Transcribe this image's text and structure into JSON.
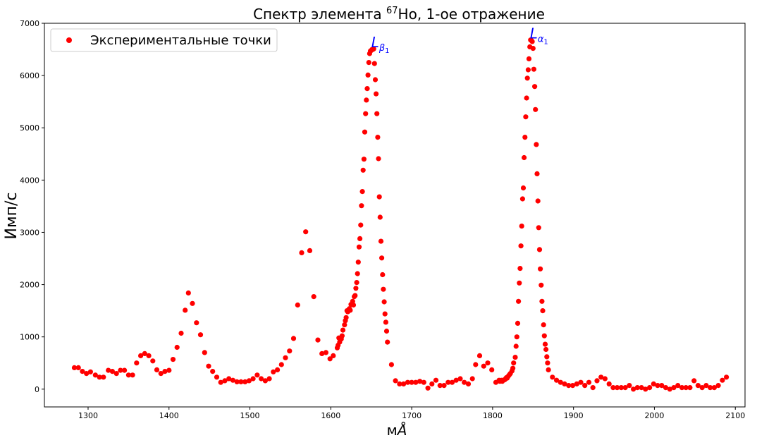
{
  "chart_data": {
    "type": "scatter",
    "title": {
      "prefix": "Спектр элемента ",
      "superscript": "67",
      "suffix": "Ho, 1-ое отражение"
    },
    "xlabel": {
      "main": "м",
      "italic": "Å"
    },
    "ylabel": "Имп/с",
    "xlim": [
      1246,
      2112
    ],
    "ylim": [
      -340,
      7000
    ],
    "xticks": [
      1300,
      1400,
      1500,
      1600,
      1700,
      1800,
      1900,
      2000,
      2100
    ],
    "yticks": [
      0,
      1000,
      2000,
      3000,
      4000,
      5000,
      6000,
      7000
    ],
    "grid": false,
    "legend": {
      "position": "top-left",
      "label": "Экспериментальные точки"
    },
    "series": [
      {
        "name": "Экспериментальные точки",
        "color": "#ff0000",
        "marker": "circle",
        "points": [
          [
            1283,
            410
          ],
          [
            1288,
            410
          ],
          [
            1293,
            340
          ],
          [
            1298,
            300
          ],
          [
            1303,
            330
          ],
          [
            1309,
            270
          ],
          [
            1314,
            230
          ],
          [
            1319,
            230
          ],
          [
            1325,
            360
          ],
          [
            1330,
            340
          ],
          [
            1335,
            300
          ],
          [
            1340,
            360
          ],
          [
            1345,
            360
          ],
          [
            1350,
            270
          ],
          [
            1355,
            270
          ],
          [
            1360,
            500
          ],
          [
            1365,
            640
          ],
          [
            1370,
            680
          ],
          [
            1375,
            640
          ],
          [
            1380,
            540
          ],
          [
            1385,
            370
          ],
          [
            1390,
            300
          ],
          [
            1395,
            340
          ],
          [
            1400,
            360
          ],
          [
            1405,
            570
          ],
          [
            1410,
            800
          ],
          [
            1415,
            1070
          ],
          [
            1420,
            1510
          ],
          [
            1424,
            1840
          ],
          [
            1429,
            1640
          ],
          [
            1434,
            1270
          ],
          [
            1439,
            1040
          ],
          [
            1444,
            700
          ],
          [
            1449,
            440
          ],
          [
            1454,
            340
          ],
          [
            1459,
            230
          ],
          [
            1464,
            130
          ],
          [
            1469,
            160
          ],
          [
            1474,
            200
          ],
          [
            1479,
            170
          ],
          [
            1484,
            140
          ],
          [
            1489,
            140
          ],
          [
            1494,
            140
          ],
          [
            1499,
            160
          ],
          [
            1504,
            200
          ],
          [
            1509,
            270
          ],
          [
            1514,
            200
          ],
          [
            1519,
            160
          ],
          [
            1524,
            200
          ],
          [
            1529,
            330
          ],
          [
            1534,
            370
          ],
          [
            1539,
            470
          ],
          [
            1544,
            600
          ],
          [
            1549,
            730
          ],
          [
            1554,
            970
          ],
          [
            1559,
            1610
          ],
          [
            1564,
            2610
          ],
          [
            1569,
            3010
          ],
          [
            1574,
            2650
          ],
          [
            1579,
            1770
          ],
          [
            1584,
            940
          ],
          [
            1589,
            680
          ],
          [
            1594,
            700
          ],
          [
            1599,
            580
          ],
          [
            1603,
            640
          ],
          [
            1608,
            790
          ],
          [
            1609,
            840
          ],
          [
            1610,
            980
          ],
          [
            1611,
            900
          ],
          [
            1613,
            960
          ],
          [
            1614,
            1020
          ],
          [
            1615,
            1130
          ],
          [
            1617,
            1230
          ],
          [
            1618,
            1310
          ],
          [
            1619,
            1370
          ],
          [
            1620,
            1500
          ],
          [
            1621,
            1480
          ],
          [
            1623,
            1540
          ],
          [
            1624,
            1510
          ],
          [
            1625,
            1620
          ],
          [
            1627,
            1680
          ],
          [
            1628,
            1610
          ],
          [
            1629,
            1770
          ],
          [
            1630,
            1790
          ],
          [
            1631,
            1930
          ],
          [
            1632,
            2040
          ],
          [
            1633,
            2210
          ],
          [
            1634,
            2430
          ],
          [
            1635,
            2720
          ],
          [
            1636,
            2880
          ],
          [
            1637,
            3140
          ],
          [
            1638,
            3510
          ],
          [
            1639,
            3780
          ],
          [
            1640,
            4190
          ],
          [
            1641,
            4400
          ],
          [
            1642,
            4920
          ],
          [
            1643,
            5270
          ],
          [
            1644,
            5530
          ],
          [
            1645,
            5750
          ],
          [
            1646,
            6010
          ],
          [
            1647,
            6250
          ],
          [
            1648,
            6420
          ],
          [
            1649,
            6470
          ],
          [
            1650,
            6480
          ],
          [
            1651,
            6500
          ],
          [
            1652,
            6500
          ],
          [
            1653,
            6510
          ],
          [
            1654,
            6230
          ],
          [
            1655,
            5920
          ],
          [
            1656,
            5650
          ],
          [
            1657,
            5270
          ],
          [
            1658,
            4820
          ],
          [
            1659,
            4410
          ],
          [
            1660,
            3680
          ],
          [
            1661,
            3290
          ],
          [
            1662,
            2830
          ],
          [
            1663,
            2510
          ],
          [
            1664,
            2190
          ],
          [
            1665,
            1910
          ],
          [
            1666,
            1670
          ],
          [
            1667,
            1440
          ],
          [
            1668,
            1280
          ],
          [
            1669,
            1110
          ],
          [
            1670,
            900
          ],
          [
            1675,
            470
          ],
          [
            1680,
            160
          ],
          [
            1685,
            100
          ],
          [
            1690,
            100
          ],
          [
            1695,
            130
          ],
          [
            1700,
            130
          ],
          [
            1705,
            130
          ],
          [
            1710,
            150
          ],
          [
            1715,
            130
          ],
          [
            1720,
            20
          ],
          [
            1725,
            100
          ],
          [
            1730,
            170
          ],
          [
            1735,
            70
          ],
          [
            1740,
            70
          ],
          [
            1745,
            130
          ],
          [
            1750,
            130
          ],
          [
            1755,
            170
          ],
          [
            1760,
            200
          ],
          [
            1765,
            130
          ],
          [
            1770,
            100
          ],
          [
            1775,
            200
          ],
          [
            1779,
            470
          ],
          [
            1784,
            640
          ],
          [
            1789,
            440
          ],
          [
            1794,
            500
          ],
          [
            1799,
            370
          ],
          [
            1804,
            130
          ],
          [
            1808,
            170
          ],
          [
            1809,
            150
          ],
          [
            1810,
            160
          ],
          [
            1811,
            170
          ],
          [
            1812,
            150
          ],
          [
            1813,
            170
          ],
          [
            1815,
            180
          ],
          [
            1816,
            200
          ],
          [
            1817,
            220
          ],
          [
            1818,
            210
          ],
          [
            1819,
            240
          ],
          [
            1820,
            260
          ],
          [
            1821,
            280
          ],
          [
            1822,
            300
          ],
          [
            1824,
            350
          ],
          [
            1825,
            400
          ],
          [
            1826,
            500
          ],
          [
            1828,
            610
          ],
          [
            1829,
            820
          ],
          [
            1830,
            1000
          ],
          [
            1831,
            1260
          ],
          [
            1832,
            1680
          ],
          [
            1833,
            2030
          ],
          [
            1834,
            2310
          ],
          [
            1835,
            2740
          ],
          [
            1836,
            3120
          ],
          [
            1837,
            3640
          ],
          [
            1838,
            3850
          ],
          [
            1839,
            4430
          ],
          [
            1840,
            4820
          ],
          [
            1841,
            5210
          ],
          [
            1842,
            5570
          ],
          [
            1843,
            5950
          ],
          [
            1844,
            6110
          ],
          [
            1845,
            6320
          ],
          [
            1846,
            6550
          ],
          [
            1847,
            6680
          ],
          [
            1848,
            6670
          ],
          [
            1849,
            6650
          ],
          [
            1850,
            6520
          ],
          [
            1851,
            6120
          ],
          [
            1852,
            5790
          ],
          [
            1853,
            5350
          ],
          [
            1854,
            4680
          ],
          [
            1855,
            4120
          ],
          [
            1856,
            3600
          ],
          [
            1857,
            3090
          ],
          [
            1858,
            2670
          ],
          [
            1859,
            2300
          ],
          [
            1860,
            1990
          ],
          [
            1861,
            1680
          ],
          [
            1862,
            1500
          ],
          [
            1863,
            1230
          ],
          [
            1864,
            1020
          ],
          [
            1865,
            860
          ],
          [
            1866,
            760
          ],
          [
            1867,
            620
          ],
          [
            1868,
            500
          ],
          [
            1869,
            370
          ],
          [
            1874,
            230
          ],
          [
            1879,
            170
          ],
          [
            1884,
            130
          ],
          [
            1889,
            100
          ],
          [
            1894,
            70
          ],
          [
            1899,
            70
          ],
          [
            1904,
            100
          ],
          [
            1909,
            130
          ],
          [
            1914,
            70
          ],
          [
            1919,
            130
          ],
          [
            1924,
            30
          ],
          [
            1929,
            160
          ],
          [
            1934,
            230
          ],
          [
            1939,
            200
          ],
          [
            1944,
            100
          ],
          [
            1949,
            30
          ],
          [
            1954,
            30
          ],
          [
            1959,
            30
          ],
          [
            1964,
            30
          ],
          [
            1969,
            70
          ],
          [
            1974,
            0
          ],
          [
            1979,
            30
          ],
          [
            1984,
            30
          ],
          [
            1989,
            0
          ],
          [
            1994,
            30
          ],
          [
            1999,
            100
          ],
          [
            2004,
            70
          ],
          [
            2009,
            70
          ],
          [
            2014,
            30
          ],
          [
            2019,
            0
          ],
          [
            2024,
            30
          ],
          [
            2029,
            70
          ],
          [
            2034,
            30
          ],
          [
            2039,
            30
          ],
          [
            2044,
            30
          ],
          [
            2049,
            160
          ],
          [
            2054,
            70
          ],
          [
            2059,
            30
          ],
          [
            2064,
            70
          ],
          [
            2069,
            30
          ],
          [
            2074,
            30
          ],
          [
            2079,
            70
          ],
          [
            2084,
            170
          ],
          [
            2089,
            230
          ]
        ]
      }
    ],
    "annotations": [
      {
        "label": "L",
        "subscript": "β",
        "subscript_index": "1",
        "x": 1650,
        "y": 6540,
        "color": "#0000ff"
      },
      {
        "label": "L",
        "subscript": "α",
        "subscript_index": "1",
        "x": 1846,
        "y": 6710,
        "color": "#0000ff"
      }
    ]
  }
}
